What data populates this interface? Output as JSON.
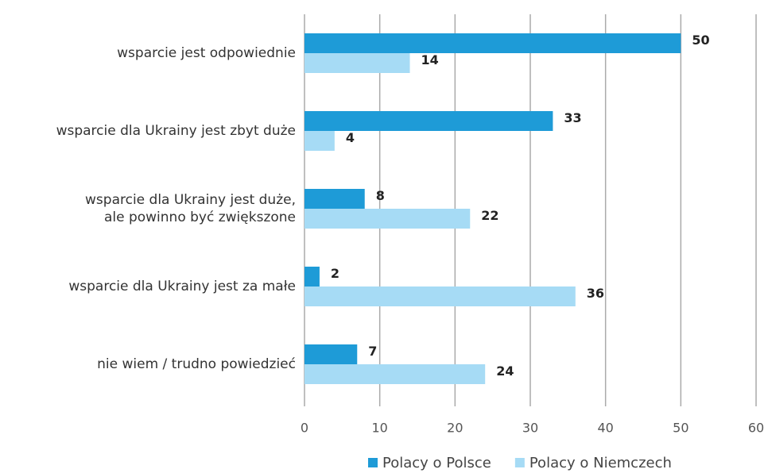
{
  "chart_data": {
    "type": "barh",
    "categories": [
      "wsparcie jest odpowiednie",
      "wsparcie dla Ukrainy jest zbyt duże",
      "wsparcie dla Ukrainy jest duże,\nale powinno być zwiększone",
      "wsparcie dla Ukrainy jest za małe",
      "nie wiem / trudno powiedzieć"
    ],
    "series": [
      {
        "name": "Polacy o Polsce",
        "color": "#1e9bd7",
        "values": [
          50,
          33,
          8,
          2,
          7
        ]
      },
      {
        "name": "Polacy o Niemczech",
        "color": "#a6dbf5",
        "values": [
          14,
          4,
          22,
          36,
          24
        ]
      }
    ],
    "xlim": [
      0,
      60
    ],
    "xticks": [
      0,
      10,
      20,
      30,
      40,
      50,
      60
    ],
    "grid": true,
    "legend": "bottom"
  }
}
